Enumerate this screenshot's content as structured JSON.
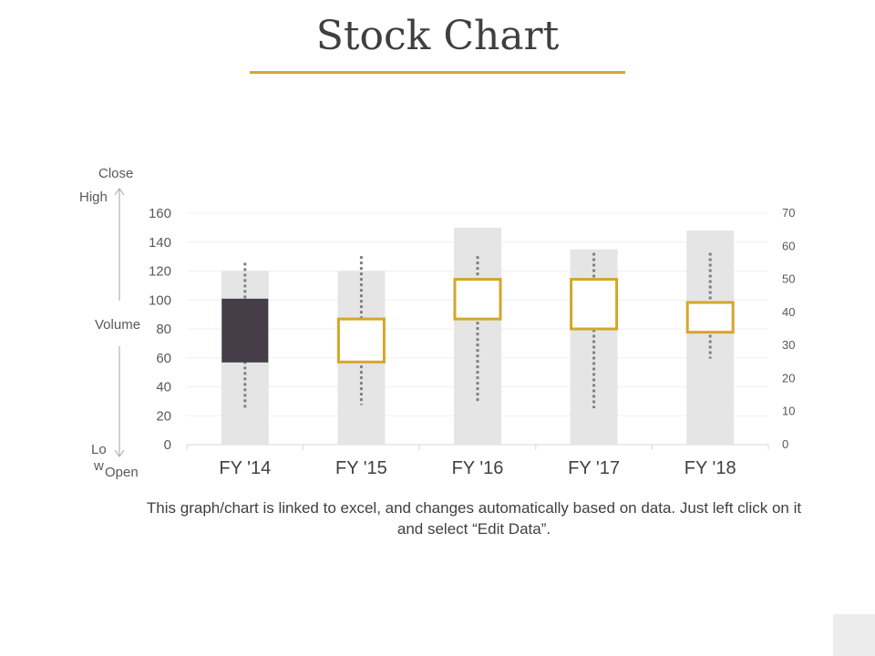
{
  "slide": {
    "title": "Stock Chart",
    "caption": "This graph/chart is linked to excel, and changes automatically based on data. Just left click on it and select “Edit Data”.",
    "accent_color": "#d4a62a"
  },
  "side_labels": {
    "close": "Close",
    "high": "High",
    "volume": "Volume",
    "low_part1": "Lo",
    "low_part2": "w",
    "open": "Open"
  },
  "chart_data": {
    "type": "bar",
    "subtype": "stock-volume-open-high-low-close",
    "categories": [
      "FY '14",
      "FY '15",
      "FY '16",
      "FY '17",
      "FY '18"
    ],
    "left_axis": {
      "ylim": [
        0,
        160
      ],
      "ticks": [
        "0",
        "20",
        "40",
        "60",
        "80",
        "100",
        "120",
        "140",
        "160"
      ]
    },
    "right_axis": {
      "ylim": [
        0,
        70
      ],
      "ticks": [
        "0",
        "10",
        "20",
        "30",
        "40",
        "50",
        "60",
        "70"
      ]
    },
    "volume": [
      120,
      120,
      150,
      135,
      148
    ],
    "open": [
      100,
      87,
      87,
      80,
      78
    ],
    "high": [
      125,
      130,
      130,
      133,
      132
    ],
    "low": [
      25,
      28,
      30,
      25,
      60
    ],
    "close": [
      57,
      57,
      100,
      114,
      98
    ],
    "price_scale": "right",
    "price_values_right_units": {
      "open": [
        44,
        25,
        38,
        35,
        34
      ],
      "close": [
        25,
        38,
        50,
        50,
        43
      ],
      "high": [
        55,
        57,
        57,
        58,
        58
      ],
      "low": [
        11,
        12,
        13,
        11,
        26
      ]
    },
    "colors": {
      "volume": "#e5e5e5",
      "down_box": "#453d48",
      "up_box_fill": "#ffffff",
      "up_box_stroke": "#d4a62a",
      "whisker": "#7f7f7f",
      "grid": "#efefef"
    },
    "grid": true
  }
}
